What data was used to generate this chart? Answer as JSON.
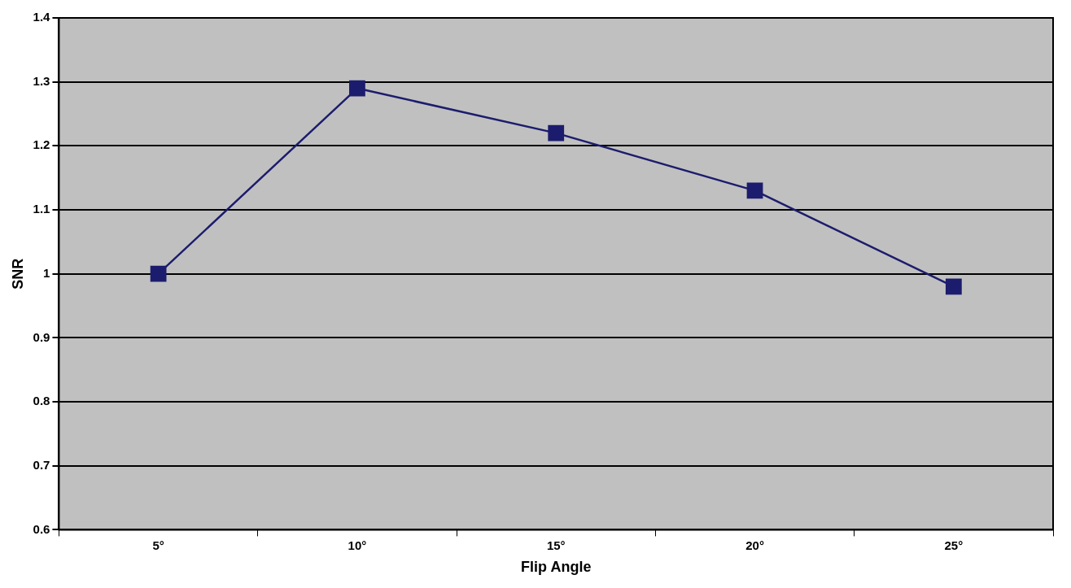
{
  "chart_data": {
    "type": "line",
    "xlabel": "Flip Angle",
    "ylabel": "SNR",
    "categories": [
      "5°",
      "10°",
      "15°",
      "20°",
      "25°"
    ],
    "series": [
      {
        "color": "#1c1c6e",
        "values": [
          1.0,
          1.29,
          1.22,
          1.13,
          0.98
        ]
      }
    ],
    "ylim": [
      0.6,
      1.4
    ],
    "yticks": [
      0.6,
      0.7,
      0.8,
      0.9,
      1,
      1.1,
      1.2,
      1.3,
      1.4
    ],
    "grid": "y",
    "legend": false,
    "marker": "square",
    "line_style": "solid"
  }
}
